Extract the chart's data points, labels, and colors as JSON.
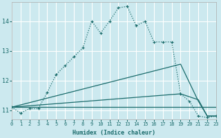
{
  "xlabel": "Humidex (Indice chaleur)",
  "bg_color": "#cce9ef",
  "grid_color": "#aad4db",
  "line_color": "#1a6b6b",
  "x_min": 0,
  "x_max": 23,
  "y_min": 10.7,
  "y_max": 14.65,
  "yticks": [
    11,
    12,
    13,
    14
  ],
  "xticks": [
    0,
    1,
    2,
    3,
    4,
    5,
    6,
    7,
    8,
    9,
    10,
    11,
    12,
    13,
    14,
    15,
    16,
    17,
    18,
    19,
    20,
    21,
    22,
    23
  ],
  "series_dotted": {
    "x": [
      0,
      1,
      2,
      3,
      4,
      5,
      6,
      7,
      8,
      9,
      10,
      11,
      12,
      13,
      14,
      15,
      16,
      17,
      18,
      19,
      20,
      21,
      22,
      23
    ],
    "y": [
      11.1,
      10.9,
      11.05,
      11.05,
      11.6,
      12.2,
      12.5,
      12.8,
      13.1,
      14.0,
      13.6,
      14.0,
      14.45,
      14.5,
      13.85,
      14.0,
      13.3,
      13.3,
      13.3,
      11.55,
      11.3,
      10.8,
      10.75,
      10.8
    ]
  },
  "series_solid": [
    {
      "x": [
        0,
        23
      ],
      "y": [
        11.1,
        11.1
      ]
    },
    {
      "x": [
        0,
        19,
        21,
        22,
        23
      ],
      "y": [
        11.1,
        11.55,
        11.35,
        10.8,
        10.8
      ]
    },
    {
      "x": [
        0,
        19,
        21,
        22,
        23
      ],
      "y": [
        11.1,
        12.55,
        11.3,
        10.8,
        10.8
      ]
    }
  ]
}
